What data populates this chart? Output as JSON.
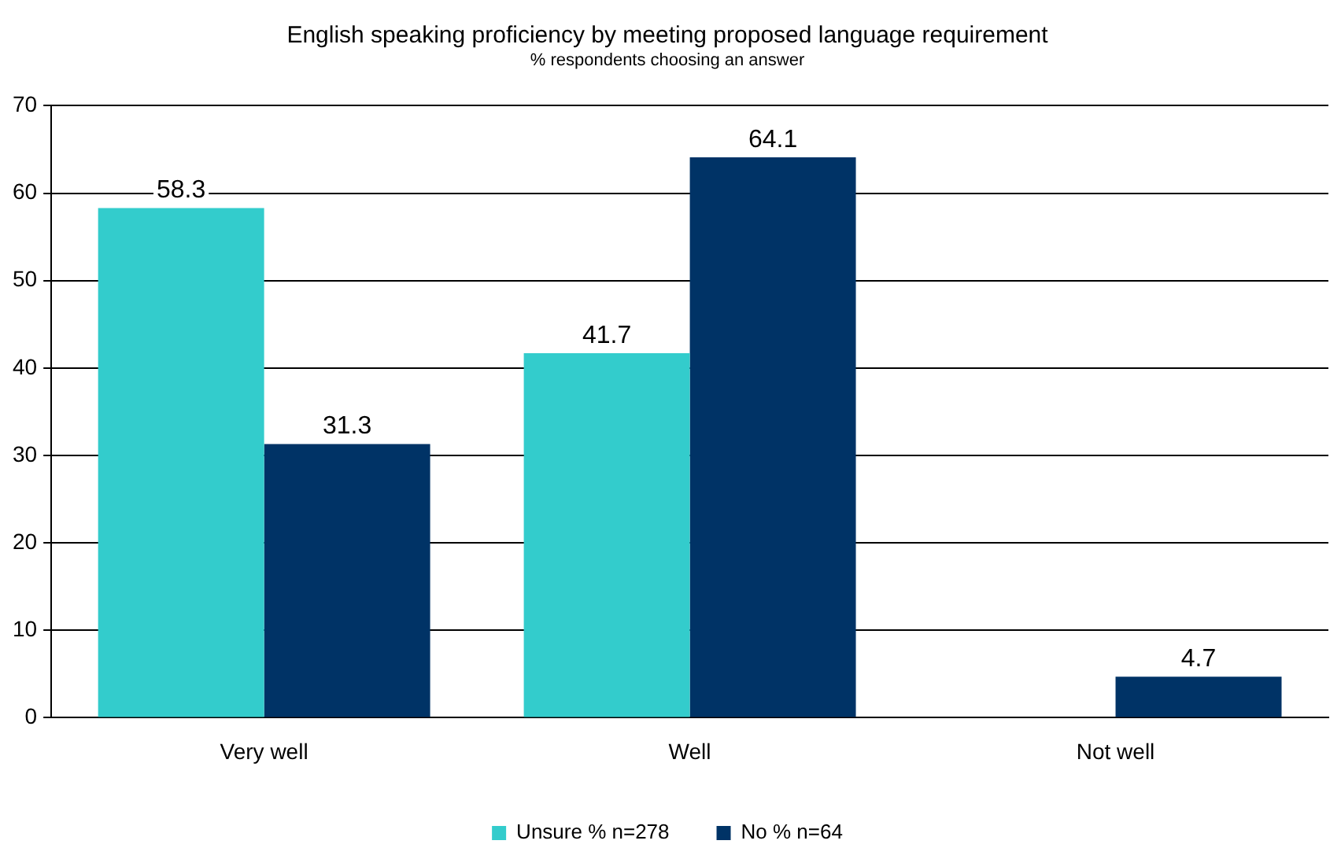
{
  "chart_data": {
    "type": "bar",
    "title": "English speaking proficiency by meeting proposed language requirement",
    "subtitle": "% respondents choosing an answer",
    "categories": [
      "Very well",
      "Well",
      "Not well"
    ],
    "series": [
      {
        "name": "Unsure % n=278",
        "color": "#33cccc",
        "values": [
          58.3,
          41.7,
          null
        ]
      },
      {
        "name": "No % n=64",
        "color": "#003366",
        "values": [
          31.3,
          64.1,
          4.7
        ]
      }
    ],
    "ylim": [
      0,
      70
    ],
    "yticks": [
      0,
      10,
      20,
      30,
      40,
      50,
      60,
      70
    ],
    "grid": "y",
    "legend": "bottom",
    "data_labels": true
  }
}
